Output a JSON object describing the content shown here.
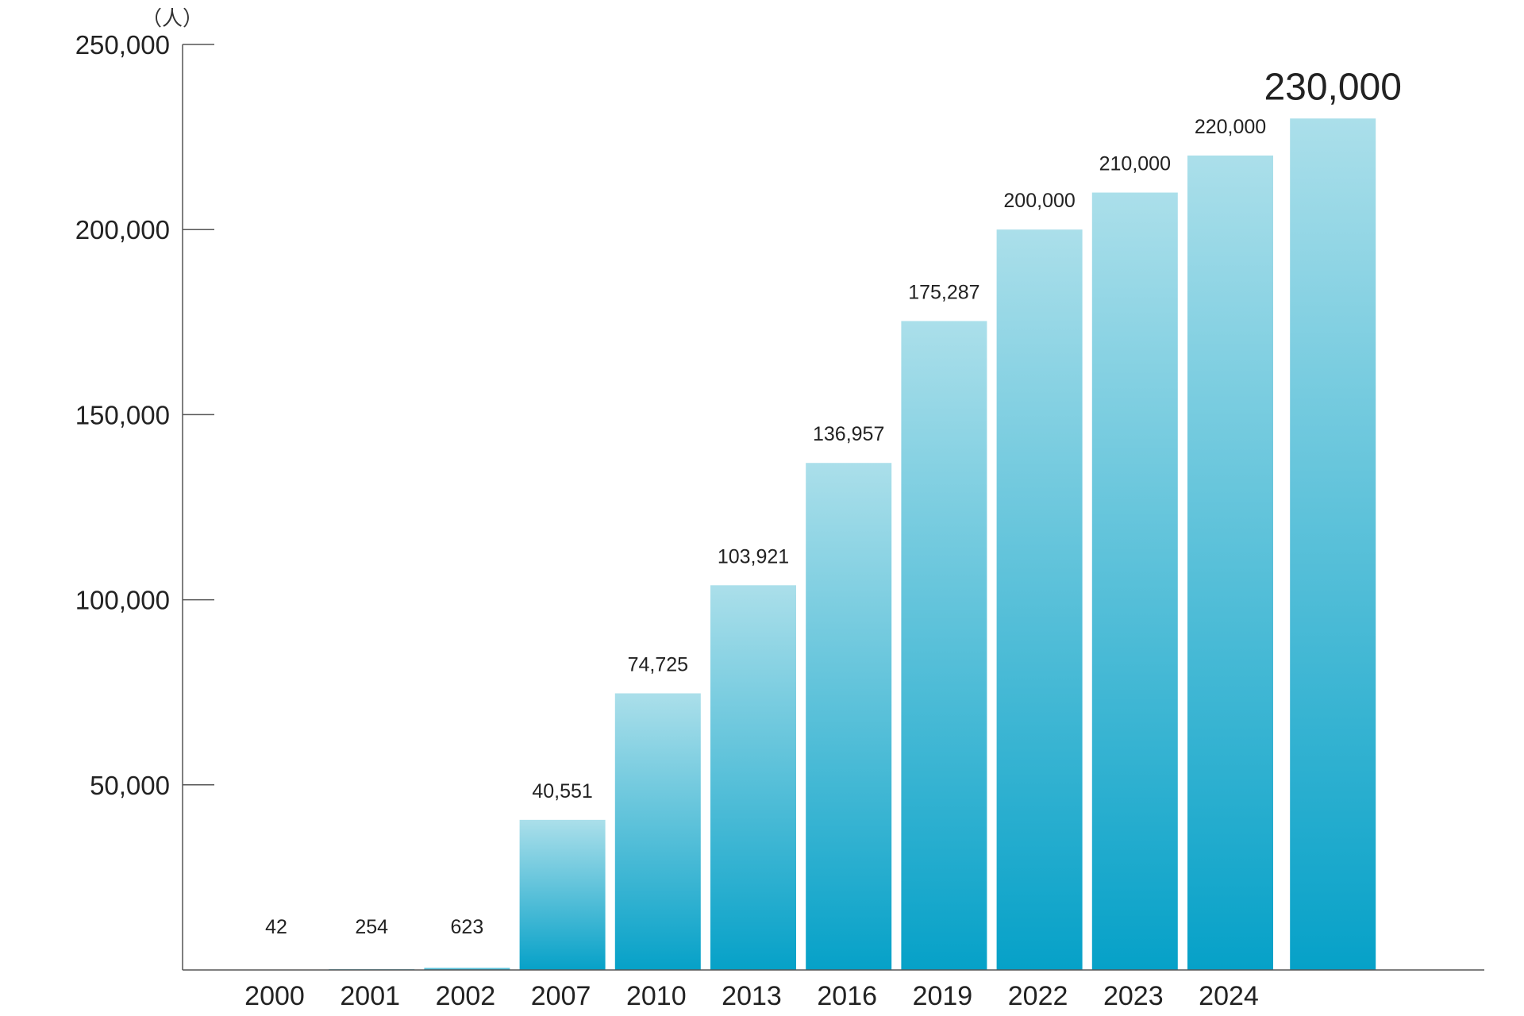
{
  "chart_data": {
    "type": "bar",
    "unit_label": "（人）",
    "categories": [
      "2000",
      "2001",
      "2002",
      "2007",
      "2010",
      "2013",
      "2016",
      "2019",
      "2022",
      "2023",
      "2024",
      ""
    ],
    "values": [
      42,
      254,
      623,
      40551,
      74725,
      103921,
      136957,
      175287,
      200000,
      210000,
      220000,
      230000
    ],
    "data_labels": [
      "42",
      "254",
      "623",
      "40,551",
      "74,725",
      "103,921",
      "136,957",
      "175,287",
      "200,000",
      "210,000",
      "220,000",
      "230,000"
    ],
    "ylim": [
      0,
      250000
    ],
    "yticks": [
      50000,
      100000,
      150000,
      200000,
      250000
    ],
    "ytick_labels": [
      "50,000",
      "100,000",
      "150,000",
      "200,000",
      "250,000"
    ],
    "xlabel": "",
    "ylabel": "",
    "grid": false,
    "colors": {
      "bar_top": "#abdfea",
      "bar_bottom": "#06a1c8",
      "highlight_label": "#e8201f",
      "axis": "#555555"
    },
    "highlight_index": 11
  }
}
